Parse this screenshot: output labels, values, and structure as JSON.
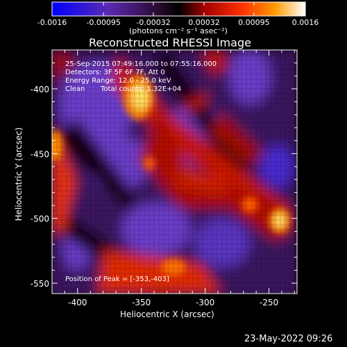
{
  "colorbar": {
    "ticks": [
      "-0.0016",
      "-0.00095",
      "-0.00032",
      "0.00032",
      "0.00095",
      "0.0016"
    ],
    "units_label": "(photons cm⁻² s⁻¹ asec⁻²)"
  },
  "title": "Reconstructed RHESSI Image",
  "annotations": {
    "line1": "25-Sep-2015 07:49:16.000 to 07:55:16.000",
    "line2": "Detectors: 3F 5F 6F 7F, Att 0",
    "line3": "Energy Range: 12.0 - 25.0 keV",
    "line4_left": "Clean",
    "line4_right": "Total counts: 1.32E+04",
    "peak": "Position of Peak = [-353,-403]"
  },
  "footer_timestamp": "23-May-2022 09:26",
  "chart_data": {
    "type": "heatmap",
    "title": "Reconstructed RHESSI Image",
    "xlabel": "Heliocentric X (arcsec)",
    "ylabel": "Heliocentric Y (arcsec)",
    "xlim": [
      -420,
      -228
    ],
    "ylim": [
      -558,
      -370
    ],
    "xticks": [
      -400,
      -350,
      -300,
      -250
    ],
    "yticks": [
      -400,
      -450,
      -500,
      -550
    ],
    "xtick_labels": [
      "-400",
      "-350",
      "-300",
      "-250"
    ],
    "ytick_labels": [
      "-400",
      "-450",
      "-500",
      "-550"
    ],
    "colorbar_range": [
      -0.0016,
      0.0016
    ],
    "peak_position": [
      -353,
      -403
    ],
    "colormap": [
      "#0000ff",
      "#5a2aa0",
      "#2a0a2a",
      "#000000",
      "#8a0000",
      "#ff2a00",
      "#ffa000",
      "#ffffff"
    ]
  }
}
